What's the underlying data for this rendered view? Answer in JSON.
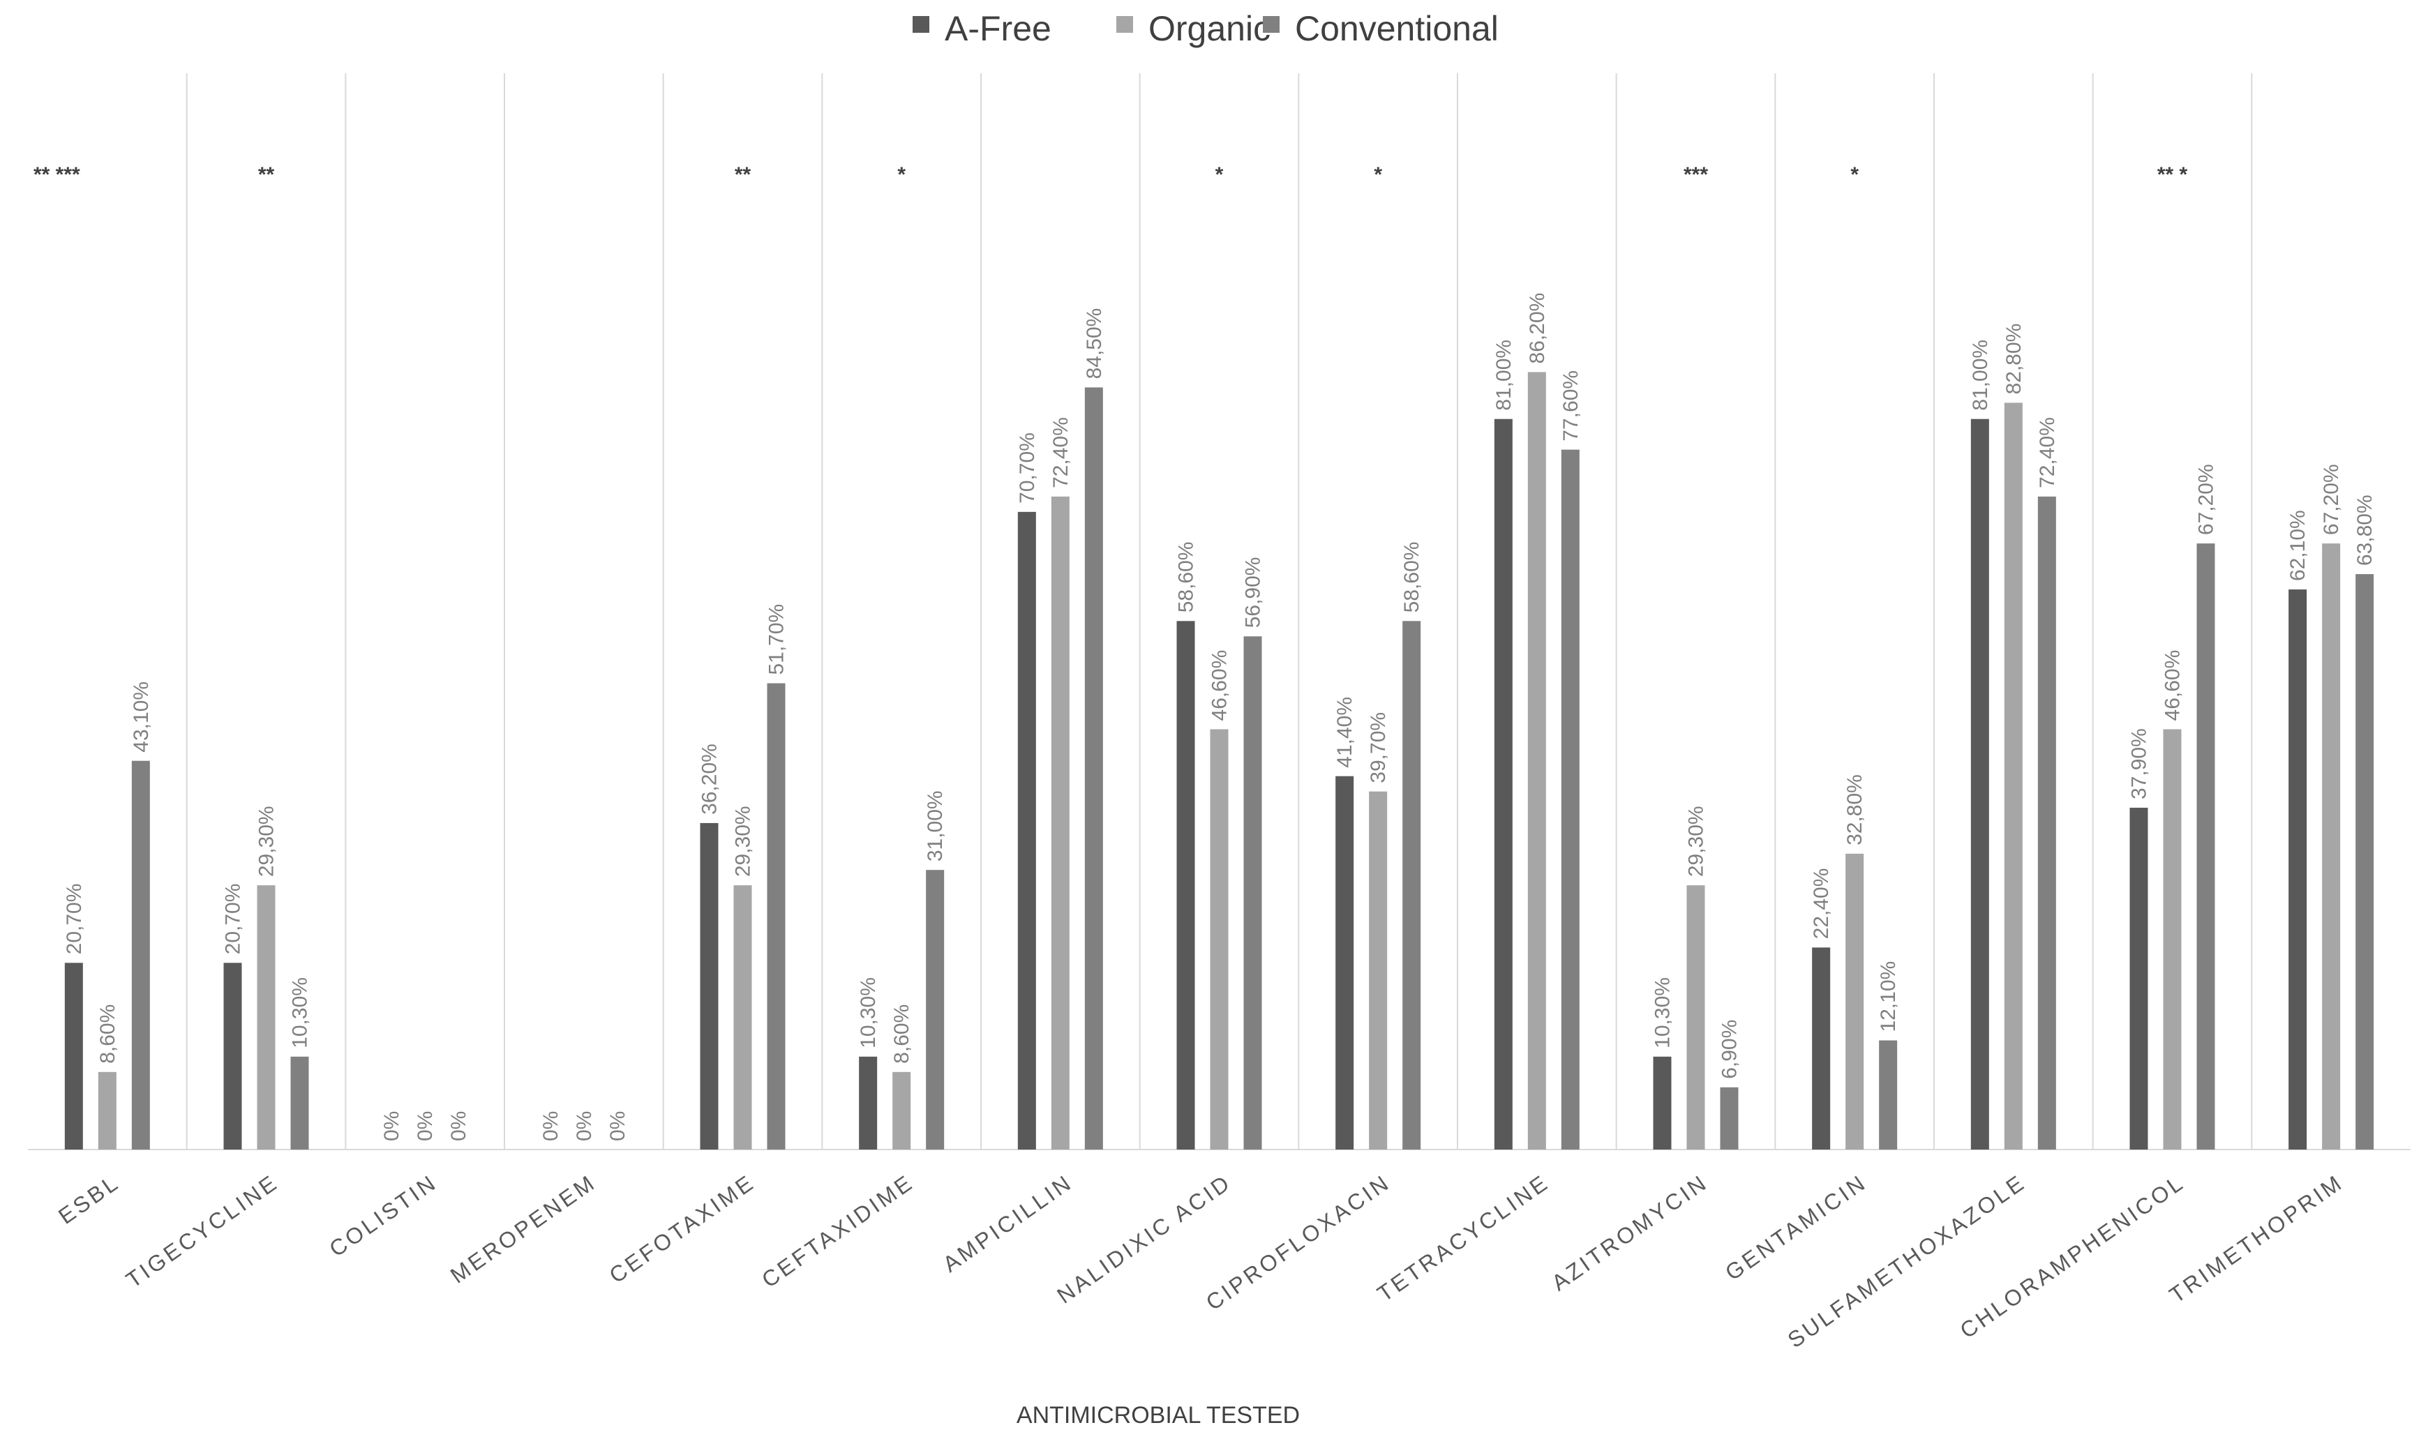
{
  "chart_data": {
    "type": "bar",
    "title": "",
    "xlabel": "ANTIMICROBIAL TESTED",
    "ylabel": "",
    "ylim": [
      0,
      100
    ],
    "grid": "vertical-category-separators",
    "legend_position": "top-center",
    "categories": [
      "ESBL",
      "TIGECYCLINE",
      "COLISTIN",
      "MEROPENEM",
      "CEFOTAXIME",
      "CEFTAXIDIME",
      "AMPICILLIN",
      "NALIDIXIC ACID",
      "CIPROFLOXACIN",
      "TETRACYCLINE",
      "AZITROMYCIN",
      "GENTAMICIN",
      "SULFAMETHOXAZOLE",
      "CHLORAMPHENICOL",
      "TRIMETHOPRIM"
    ],
    "significance": [
      "** ***",
      "**",
      "",
      "",
      "**",
      "*",
      "",
      "*",
      "*",
      "",
      "***",
      "*",
      "",
      "** *",
      ""
    ],
    "series": [
      {
        "name": "A-Free",
        "color": "#595959",
        "values": [
          20.7,
          20.7,
          0,
          0,
          36.2,
          10.3,
          70.7,
          58.6,
          41.4,
          81.0,
          10.3,
          22.4,
          81.0,
          37.9,
          62.1
        ],
        "labels": [
          "20,70%",
          "20,70%",
          "0%",
          "0%",
          "36,20%",
          "10,30%",
          "70,70%",
          "58,60%",
          "41,40%",
          "81,00%",
          "10,30%",
          "22,40%",
          "81,00%",
          "37,90%",
          "62,10%"
        ]
      },
      {
        "name": "Organic",
        "color": "#a6a6a6",
        "values": [
          8.6,
          29.3,
          0,
          0,
          29.3,
          8.6,
          72.4,
          46.6,
          39.7,
          86.2,
          29.3,
          32.8,
          82.8,
          46.6,
          67.2
        ],
        "labels": [
          "8,60%",
          "29,30%",
          "0%",
          "0%",
          "29,30%",
          "8,60%",
          "72,40%",
          "46,60%",
          "39,70%",
          "86,20%",
          "29,30%",
          "32,80%",
          "82,80%",
          "46,60%",
          "67,20%"
        ]
      },
      {
        "name": "Conventional",
        "color": "#808080",
        "values": [
          43.1,
          10.3,
          0,
          0,
          51.7,
          31.0,
          84.5,
          56.9,
          58.6,
          77.6,
          6.9,
          12.1,
          72.4,
          67.2,
          63.8
        ],
        "labels": [
          "43,10%",
          "10,30%",
          "0%",
          "0%",
          "51,70%",
          "31,00%",
          "84,50%",
          "56,90%",
          "58,60%",
          "77,60%",
          "6,90%",
          "12,10%",
          "72,40%",
          "67,20%",
          "63,80%"
        ]
      }
    ]
  }
}
